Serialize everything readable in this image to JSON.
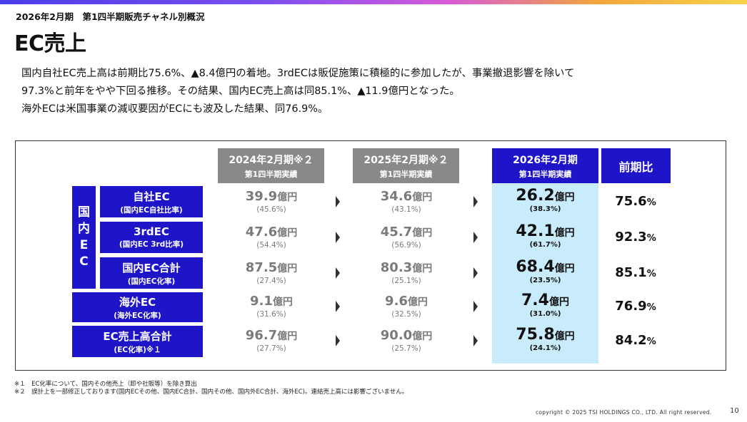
{
  "subtitle": "2026年2月期　第1四半期販売チャネル別概況",
  "title": "EC売上",
  "description": [
    "国内自社EC売上高は前期比75.6%、▲8.4億円の着地。3rdECは販促施策に積極的に参加したが、事業撤退影響を除いて",
    "97.3%と前年をやや下回る推移。その結果、国内EC売上高は同85.1%、▲11.9億円となった。",
    "海外ECは米国事業の減収要因がECにも波及した結果、同76.9%。"
  ],
  "columns": [
    {
      "line1": "2024年2月期",
      "mark": "※２",
      "line2": "第1四半期実績"
    },
    {
      "line1": "2025年2月期",
      "mark": "※２",
      "line2": "第1四半期実績"
    },
    {
      "line1": "2026年2月期",
      "mark": "",
      "line2": "第1四半期実績"
    },
    {
      "line1": "前期比",
      "mark": "",
      "line2": ""
    }
  ],
  "domestic_label": [
    "国",
    "内",
    "E",
    "C"
  ],
  "unit": "億円",
  "pct_unit": "%",
  "rows": [
    {
      "label": "自社EC",
      "sublabel": "(国内EC自社比率)",
      "v2024": "39.9",
      "r2024": "(45.6%)",
      "v2025": "34.6",
      "r2025": "(43.1%)",
      "v2026": "26.2",
      "r2026": "(38.3%)",
      "yoy": "75.6"
    },
    {
      "label": "3rdEC",
      "sublabel": "(国内EC 3rd比率)",
      "v2024": "47.6",
      "r2024": "(54.4%)",
      "v2025": "45.7",
      "r2025": "(56.9%)",
      "v2026": "42.1",
      "r2026": "(61.7%)",
      "yoy": "92.3"
    },
    {
      "label": "国内EC合計",
      "sublabel": "(国内EC化率)",
      "v2024": "87.5",
      "r2024": "(27.4%)",
      "v2025": "80.3",
      "r2025": "(25.1%)",
      "v2026": "68.4",
      "r2026": "(23.5%)",
      "yoy": "85.1"
    },
    {
      "label": "海外EC",
      "sublabel": "(海外EC化率)",
      "v2024": "9.1",
      "r2024": "(31.6%)",
      "v2025": "9.6",
      "r2025": "(32.5%)",
      "v2026": "7.4",
      "r2026": "(31.0%)",
      "yoy": "76.9"
    },
    {
      "label": "EC売上高合計",
      "sublabel": "(EC化率)※１",
      "v2024": "96.7",
      "r2024": "(27.7%)",
      "v2025": "90.0",
      "r2025": "(25.7%)",
      "v2026": "75.8",
      "r2026": "(24.1%)",
      "yoy": "84.2"
    }
  ],
  "notes": [
    "※１　EC化率について、国内その他売上（卸や社販等）を除き算出",
    "※２　誤計上を一部修正しております(国内ECその他、国内EC合計、国内その他、国内外EC合計、海外EC)。連結売上高には影響ございません。"
  ],
  "copyright": "copyright © 2025 TSI HOLDINGS CO., LTD. All right reserved.",
  "page_number": "10",
  "colors": {
    "header_blue": "#1e14c8",
    "header_gray": "#898989",
    "highlight": "#c8ecfb"
  }
}
